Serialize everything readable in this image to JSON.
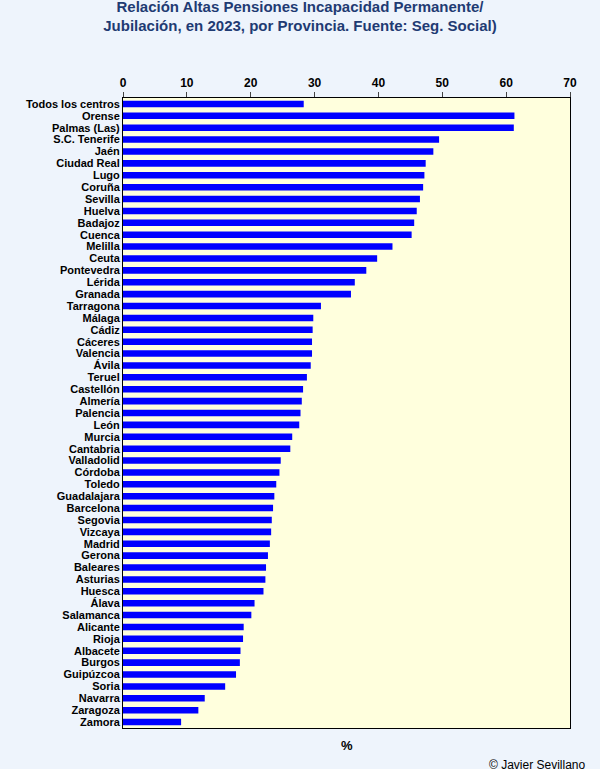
{
  "chart_data": {
    "type": "bar",
    "orientation": "horizontal",
    "title": "Relación Altas Pensiones Incapacidad Permanente/\nJubilación, en 2023, por Provincia. Fuente: Seg. Social)",
    "x_label": "%",
    "annotations": [
      "© Javier Sevillano"
    ],
    "categories": [
      "Todos los centros",
      "Orense",
      "Palmas (Las)",
      "S.C. Tenerife",
      "Jaén",
      "Ciudad Real",
      "Lugo",
      "Coruña",
      "Sevilla",
      "Huelva",
      "Badajoz",
      "Cuenca",
      "Melilla",
      "Ceuta",
      "Pontevedra",
      "Lérida",
      "Granada",
      "Tarragona",
      "Málaga",
      "Cádiz",
      "Cáceres",
      "Valencia",
      "Ávila",
      "Teruel",
      "Castellón",
      "Almería",
      "Palencia",
      "León",
      "Murcia",
      "Cantabria",
      "Valladolid",
      "Córdoba",
      "Toledo",
      "Guadalajara",
      "Barcelona",
      "Segovia",
      "Vizcaya",
      "Madrid",
      "Gerona",
      "Baleares",
      "Asturias",
      "Huesca",
      "Álava",
      "Salamanca",
      "Alicante",
      "Rioja",
      "Albacete",
      "Burgos",
      "Guipúzcoa",
      "Soria",
      "Navarra",
      "Zaragoza",
      "Zamora"
    ],
    "values": [
      28.3,
      61.3,
      61.2,
      49.5,
      48.6,
      47.4,
      47.2,
      47.0,
      46.5,
      46.0,
      45.6,
      45.2,
      42.2,
      39.8,
      38.1,
      36.3,
      35.7,
      31.0,
      29.8,
      29.7,
      29.6,
      29.6,
      29.4,
      28.8,
      28.2,
      28.0,
      27.8,
      27.6,
      26.5,
      26.2,
      24.7,
      24.5,
      24.0,
      23.7,
      23.5,
      23.3,
      23.2,
      23.0,
      22.7,
      22.4,
      22.3,
      22.0,
      20.6,
      20.1,
      18.9,
      18.8,
      18.4,
      18.3,
      17.7,
      16.0,
      12.8,
      11.8,
      9.1
    ],
    "color": "#0000ff",
    "xlim": [
      0,
      70
    ],
    "xticks": [
      0,
      10,
      20,
      30,
      40,
      50,
      60,
      70
    ],
    "grid": false
  }
}
